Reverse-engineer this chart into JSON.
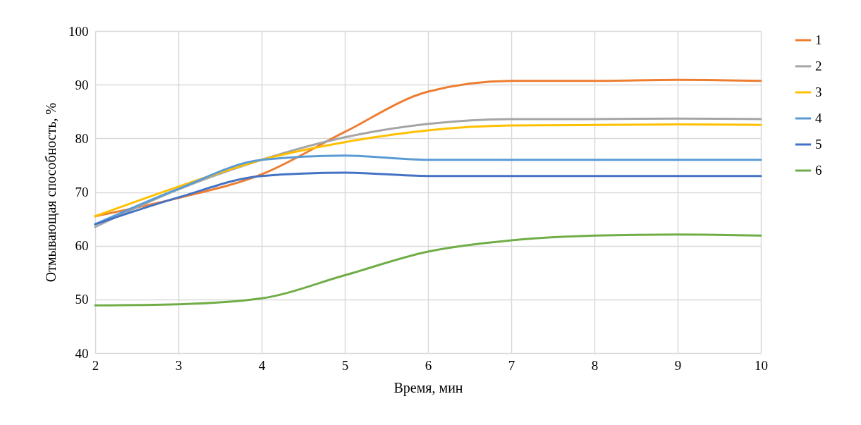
{
  "chart_data": {
    "type": "line",
    "xlabel": "Время, мин",
    "ylabel": "Отмывающая способность, %",
    "x": [
      2,
      3,
      4,
      5,
      6,
      7,
      8,
      9,
      10
    ],
    "series": [
      {
        "name": "1",
        "color": "#ed7d31",
        "values": [
          65.5,
          68.9,
          73.3,
          81.2,
          88.7,
          90.7,
          90.7,
          90.9,
          90.7
        ]
      },
      {
        "name": "2",
        "color": "#a5a5a5",
        "values": [
          63.5,
          70.5,
          76,
          80.2,
          82.7,
          83.6,
          83.6,
          83.7,
          83.6
        ]
      },
      {
        "name": "3",
        "color": "#ffc000",
        "values": [
          65.5,
          71,
          76,
          79.3,
          81.5,
          82.4,
          82.5,
          82.6,
          82.5
        ]
      },
      {
        "name": "4",
        "color": "#5b9bd5",
        "values": [
          64,
          70.6,
          76,
          76.8,
          76,
          76,
          76,
          76,
          76
        ]
      },
      {
        "name": "5",
        "color": "#4472c4",
        "values": [
          64,
          69,
          73,
          73.6,
          73,
          73,
          73,
          73,
          73
        ]
      },
      {
        "name": "6",
        "color": "#70ad47",
        "values": [
          48.9,
          49.1,
          50.2,
          54.5,
          58.9,
          61,
          61.9,
          62.1,
          61.9
        ]
      }
    ],
    "xlim": [
      2,
      10
    ],
    "xticks": [
      2,
      3,
      4,
      5,
      6,
      7,
      8,
      9,
      10
    ],
    "ylim": [
      40,
      100
    ],
    "yticks": [
      40,
      50,
      60,
      70,
      80,
      90,
      100
    ],
    "grid": true,
    "legend": "right",
    "marker": "none",
    "line_style": "solid"
  }
}
